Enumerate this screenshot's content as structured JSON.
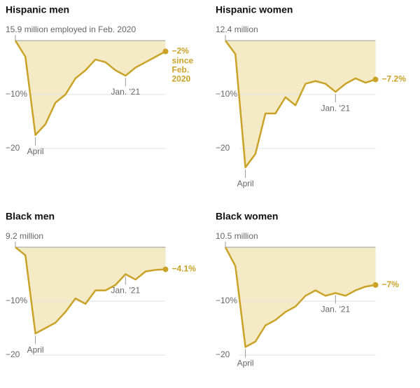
{
  "chart_data": [
    {
      "type": "line",
      "title": "Hispanic men",
      "categories": [
        null,
        null,
        "April",
        null,
        null,
        null,
        null,
        null,
        null,
        null,
        null,
        "Jan. '21",
        null,
        null,
        null,
        null
      ],
      "values": [
        0,
        -3,
        -17.5,
        -15.5,
        -11.5,
        -10,
        -7,
        -5.5,
        -3.5,
        -4,
        -5.5,
        -6.5,
        -5,
        -4,
        -3,
        -2
      ],
      "value_labels": [
        null,
        null,
        null,
        null,
        null,
        null,
        null,
        null,
        null,
        null,
        null,
        null,
        null,
        null,
        null,
        "−2%"
      ],
      "annotation": "since Feb. 2020",
      "ylim": [
        -25,
        0
      ],
      "yticks": [
        {
          "value": 0,
          "label": "15.9 million employed in Feb. 2020"
        },
        {
          "value": -10,
          "label": "−10%"
        },
        {
          "value": -20,
          "label": "−20"
        }
      ],
      "color": "#c9a227",
      "area_color": "#f4ebc6"
    },
    {
      "type": "line",
      "title": "Hispanic women",
      "categories": [
        null,
        null,
        "April",
        null,
        null,
        null,
        null,
        null,
        null,
        null,
        null,
        "Jan. '21",
        null,
        null,
        null,
        null
      ],
      "values": [
        0,
        -2.5,
        -23.5,
        -21,
        -13.5,
        -13.5,
        -10.5,
        -12,
        -8,
        -7.5,
        -8,
        -9.5,
        -8,
        -7,
        -7.8,
        -7.2
      ],
      "value_labels": [
        null,
        null,
        null,
        null,
        null,
        null,
        null,
        null,
        null,
        null,
        null,
        null,
        null,
        null,
        null,
        "−7.2%"
      ],
      "ylim": [
        -25,
        0
      ],
      "yticks": [
        {
          "value": 0,
          "label": "12.4 million"
        },
        {
          "value": -10,
          "label": "−10%"
        },
        {
          "value": -20,
          "label": "−20"
        }
      ],
      "color": "#c9a227",
      "area_color": "#f4ebc6"
    },
    {
      "type": "line",
      "title": "Black men",
      "categories": [
        null,
        null,
        "April",
        null,
        null,
        null,
        null,
        null,
        null,
        null,
        null,
        "Jan. '21",
        null,
        null,
        null,
        null
      ],
      "values": [
        0,
        -1.5,
        -16,
        -15,
        -14,
        -12,
        -9.5,
        -10.5,
        -8,
        -8,
        -7,
        -5,
        -6,
        -4.5,
        -4.2,
        -4.1
      ],
      "value_labels": [
        null,
        null,
        null,
        null,
        null,
        null,
        null,
        null,
        null,
        null,
        null,
        null,
        null,
        null,
        null,
        "−4.1%"
      ],
      "ylim": [
        -25,
        0
      ],
      "yticks": [
        {
          "value": 0,
          "label": "9.2 million"
        },
        {
          "value": -10,
          "label": "−10%"
        },
        {
          "value": -20,
          "label": "−20"
        }
      ],
      "color": "#c9a227",
      "area_color": "#f4ebc6"
    },
    {
      "type": "line",
      "title": "Black women",
      "categories": [
        null,
        null,
        "April",
        null,
        null,
        null,
        null,
        null,
        null,
        null,
        null,
        "Jan. '21",
        null,
        null,
        null,
        null
      ],
      "values": [
        0,
        -3.5,
        -18.5,
        -17.5,
        -14.5,
        -13.5,
        -12,
        -11,
        -9,
        -8,
        -9,
        -8.5,
        -9,
        -8,
        -7.3,
        -7
      ],
      "value_labels": [
        null,
        null,
        null,
        null,
        null,
        null,
        null,
        null,
        null,
        null,
        null,
        null,
        null,
        null,
        null,
        "−7%"
      ],
      "ylim": [
        -25,
        0
      ],
      "yticks": [
        {
          "value": 0,
          "label": "10.5 million"
        },
        {
          "value": -10,
          "label": "−10%"
        },
        {
          "value": -20,
          "label": "−20"
        }
      ],
      "color": "#c9a227",
      "area_color": "#f4ebc6"
    }
  ]
}
